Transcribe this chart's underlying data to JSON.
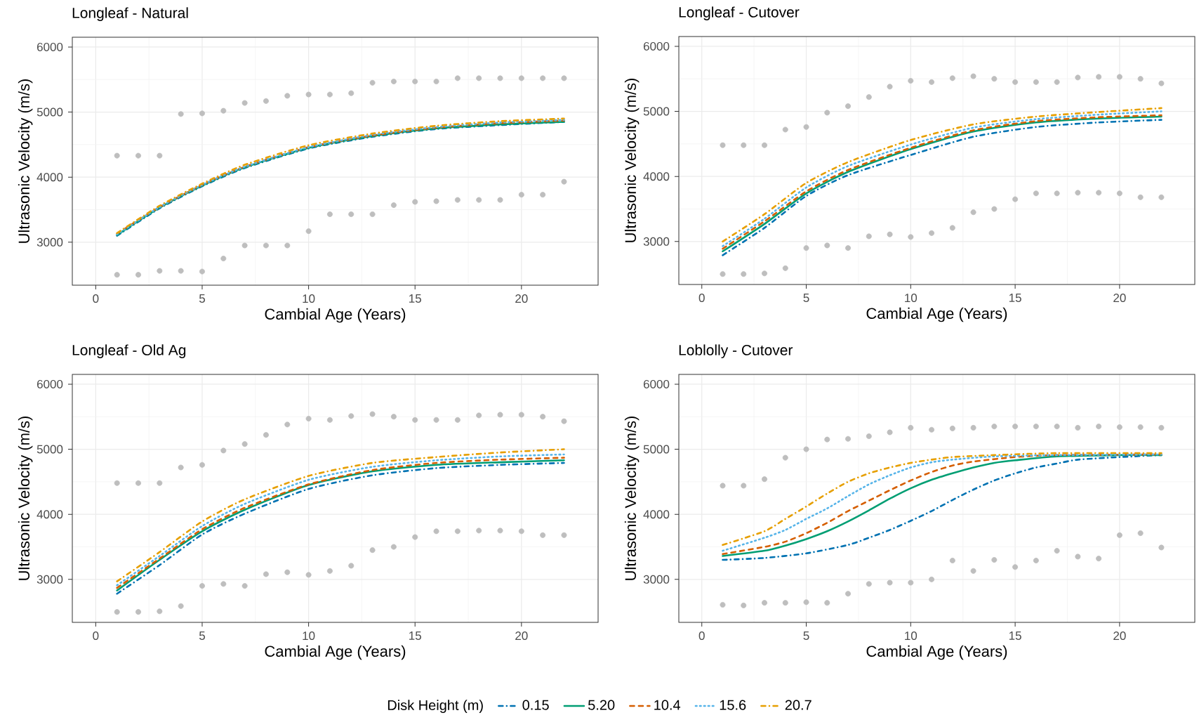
{
  "chart_data": [
    {
      "type": "line",
      "title": "Longleaf - Natural",
      "xlabel": "Cambial Age (Years)",
      "ylabel": "Ultrasonic Velocity (m/s)",
      "xlim": [
        -1.1,
        23.6
      ],
      "ylim": [
        2340,
        6150
      ],
      "xticks": [
        0,
        5,
        10,
        15,
        20
      ],
      "yticks": [
        3000,
        4000,
        5000,
        6000
      ],
      "grid": true,
      "x": [
        1,
        3,
        5,
        7,
        10,
        13,
        16,
        19,
        22
      ],
      "series": [
        {
          "type": "scatter",
          "color": "#bebebe",
          "x": [
            1,
            2,
            3,
            4,
            5,
            6,
            7,
            8,
            9,
            10,
            11,
            12,
            13,
            14,
            15,
            16,
            17,
            18,
            19,
            20,
            21,
            22,
            1,
            2,
            3,
            4,
            5,
            6,
            7,
            8,
            9,
            10,
            11,
            12,
            13,
            14,
            15,
            16,
            17,
            18,
            19,
            20,
            21,
            22
          ],
          "values": [
            4330,
            4330,
            4330,
            4970,
            4980,
            5020,
            5140,
            5170,
            5250,
            5270,
            5270,
            5290,
            5450,
            5470,
            5470,
            5470,
            5520,
            5520,
            5520,
            5520,
            5520,
            5520,
            2500,
            2500,
            2560,
            2560,
            2550,
            2750,
            2950,
            2950,
            2950,
            3170,
            3430,
            3430,
            3430,
            3570,
            3620,
            3630,
            3650,
            3650,
            3650,
            3730,
            3730,
            3930
          ]
        },
        {
          "color": "#0072b2",
          "line_style": "dashdot",
          "values": [
            3100,
            3520,
            3860,
            4140,
            4440,
            4620,
            4740,
            4800,
            4850
          ]
        },
        {
          "color": "#009e73",
          "line_style": "solid",
          "values": [
            3110,
            3530,
            3870,
            4150,
            4450,
            4630,
            4750,
            4810,
            4850
          ]
        },
        {
          "color": "#d55e00",
          "line_style": "dashed",
          "values": [
            3130,
            3540,
            3880,
            4160,
            4460,
            4640,
            4760,
            4830,
            4870
          ]
        },
        {
          "color": "#56b4e9",
          "line_style": "dotted",
          "values": [
            3120,
            3540,
            3880,
            4160,
            4460,
            4650,
            4770,
            4840,
            4880
          ]
        },
        {
          "color": "#e69f00",
          "line_style": "dashdot",
          "values": [
            3140,
            3560,
            3900,
            4190,
            4490,
            4670,
            4790,
            4860,
            4900
          ]
        }
      ]
    },
    {
      "type": "line",
      "title": "Longleaf - Cutover",
      "xlabel": "Cambial Age (Years)",
      "ylabel": "Ultrasonic Velocity (m/s)",
      "xlim": [
        -1.1,
        23.6
      ],
      "ylim": [
        2340,
        6150
      ],
      "xticks": [
        0,
        5,
        10,
        15,
        20
      ],
      "yticks": [
        3000,
        4000,
        5000,
        6000
      ],
      "grid": true,
      "x": [
        1,
        3,
        5,
        7,
        10,
        13,
        16,
        19,
        22
      ],
      "series": [
        {
          "type": "scatter",
          "color": "#bebebe",
          "x": [
            1,
            2,
            3,
            4,
            5,
            6,
            7,
            8,
            9,
            10,
            11,
            12,
            13,
            14,
            15,
            16,
            17,
            18,
            19,
            20,
            21,
            22,
            1,
            2,
            3,
            4,
            5,
            6,
            7,
            8,
            9,
            10,
            11,
            12,
            13,
            14,
            15,
            16,
            17,
            18,
            19,
            20,
            21,
            22
          ],
          "values": [
            4480,
            4480,
            4480,
            4720,
            4760,
            4980,
            5080,
            5220,
            5380,
            5470,
            5450,
            5510,
            5540,
            5500,
            5450,
            5450,
            5450,
            5520,
            5530,
            5530,
            5500,
            5430,
            2500,
            2500,
            2510,
            2590,
            2900,
            2940,
            2900,
            3080,
            3110,
            3070,
            3130,
            3210,
            3450,
            3500,
            3650,
            3740,
            3740,
            3750,
            3750,
            3740,
            3680,
            3680
          ]
        },
        {
          "color": "#0072b2",
          "line_style": "dashdot",
          "values": [
            2790,
            3210,
            3700,
            4020,
            4330,
            4610,
            4760,
            4830,
            4870
          ]
        },
        {
          "color": "#009e73",
          "line_style": "solid",
          "values": [
            2850,
            3270,
            3740,
            4070,
            4420,
            4690,
            4830,
            4890,
            4920
          ]
        },
        {
          "color": "#d55e00",
          "line_style": "dashed",
          "values": [
            2890,
            3310,
            3770,
            4100,
            4440,
            4710,
            4850,
            4910,
            4940
          ]
        },
        {
          "color": "#56b4e9",
          "line_style": "dotted",
          "values": [
            2930,
            3350,
            3830,
            4160,
            4490,
            4750,
            4880,
            4950,
            5000
          ]
        },
        {
          "color": "#e69f00",
          "line_style": "dashdot",
          "values": [
            3000,
            3420,
            3900,
            4220,
            4560,
            4800,
            4920,
            4990,
            5050
          ]
        }
      ]
    },
    {
      "type": "line",
      "title": "Longleaf - Old Ag",
      "xlabel": "Cambial Age (Years)",
      "ylabel": "Ultrasonic Velocity (m/s)",
      "xlim": [
        -1.1,
        23.6
      ],
      "ylim": [
        2340,
        6150
      ],
      "xticks": [
        0,
        5,
        10,
        15,
        20
      ],
      "yticks": [
        3000,
        4000,
        5000,
        6000
      ],
      "grid": true,
      "x": [
        1,
        3,
        5,
        7,
        10,
        13,
        16,
        19,
        22
      ],
      "series": [
        {
          "type": "scatter",
          "color": "#bebebe",
          "x": [
            1,
            2,
            3,
            4,
            5,
            6,
            7,
            8,
            9,
            10,
            11,
            12,
            13,
            14,
            15,
            16,
            17,
            18,
            19,
            20,
            21,
            22,
            1,
            2,
            3,
            4,
            5,
            6,
            7,
            8,
            9,
            10,
            11,
            12,
            13,
            14,
            15,
            16,
            17,
            18,
            19,
            20,
            21,
            22
          ],
          "values": [
            4480,
            4480,
            4480,
            4720,
            4760,
            4980,
            5080,
            5220,
            5380,
            5470,
            5450,
            5510,
            5540,
            5500,
            5450,
            5450,
            5450,
            5520,
            5530,
            5530,
            5500,
            5430,
            2500,
            2500,
            2510,
            2590,
            2900,
            2930,
            2900,
            3080,
            3110,
            3070,
            3130,
            3210,
            3450,
            3500,
            3650,
            3740,
            3740,
            3750,
            3750,
            3740,
            3680,
            3680
          ]
        },
        {
          "color": "#0072b2",
          "line_style": "dashdot",
          "values": [
            2780,
            3220,
            3690,
            4010,
            4390,
            4600,
            4710,
            4760,
            4790
          ]
        },
        {
          "color": "#009e73",
          "line_style": "solid",
          "values": [
            2830,
            3300,
            3740,
            4070,
            4450,
            4660,
            4760,
            4800,
            4830
          ]
        },
        {
          "color": "#d55e00",
          "line_style": "dashed",
          "values": [
            2870,
            3320,
            3770,
            4100,
            4460,
            4680,
            4790,
            4840,
            4870
          ]
        },
        {
          "color": "#56b4e9",
          "line_style": "dotted",
          "values": [
            2910,
            3360,
            3820,
            4160,
            4530,
            4730,
            4830,
            4890,
            4920
          ]
        },
        {
          "color": "#e69f00",
          "line_style": "dashdot",
          "values": [
            2970,
            3420,
            3890,
            4230,
            4590,
            4790,
            4880,
            4950,
            5000
          ]
        }
      ]
    },
    {
      "type": "line",
      "title": "Loblolly - Cutover",
      "xlabel": "Cambial Age (Years)",
      "ylabel": "Ultrasonic Velocity (m/s)",
      "xlim": [
        -1.1,
        23.6
      ],
      "ylim": [
        2340,
        6150
      ],
      "xticks": [
        0,
        5,
        10,
        15,
        20
      ],
      "yticks": [
        3000,
        4000,
        5000,
        6000
      ],
      "grid": true,
      "legend": "bottom",
      "legend_title": "Disk Height (m)",
      "series": [
        {
          "type": "scatter",
          "color": "#bebebe",
          "x": [
            1,
            2,
            3,
            4,
            5,
            6,
            7,
            8,
            9,
            10,
            11,
            12,
            13,
            14,
            15,
            16,
            17,
            18,
            19,
            20,
            21,
            22,
            1,
            2,
            3,
            4,
            5,
            6,
            7,
            8,
            9,
            10,
            11,
            12,
            13,
            14,
            15,
            16,
            17,
            18,
            19,
            20,
            21,
            22
          ],
          "values": [
            4440,
            4440,
            4540,
            4870,
            5000,
            5150,
            5160,
            5200,
            5260,
            5330,
            5300,
            5320,
            5330,
            5350,
            5350,
            5350,
            5350,
            5330,
            5350,
            5340,
            5340,
            5330,
            2610,
            2600,
            2640,
            2640,
            2650,
            2640,
            2780,
            2930,
            2950,
            2950,
            3000,
            3290,
            3130,
            3300,
            3190,
            3290,
            3440,
            3350,
            3320,
            3680,
            3710,
            3490
          ]
        },
        {
          "name": "0.15",
          "color": "#0072b2",
          "line_style": "dashdot",
          "x": [
            1,
            3,
            5,
            7,
            8,
            9,
            10,
            11,
            12,
            13,
            14,
            15,
            16,
            17,
            18,
            20,
            22
          ],
          "values": [
            3300,
            3330,
            3400,
            3530,
            3640,
            3760,
            3900,
            4050,
            4220,
            4380,
            4520,
            4630,
            4720,
            4780,
            4840,
            4880,
            4910
          ]
        },
        {
          "name": "5.20",
          "color": "#009e73",
          "line_style": "solid",
          "x": [
            1,
            3,
            4,
            5,
            6,
            7,
            8,
            9,
            10,
            11,
            12,
            13,
            14,
            15,
            17,
            20,
            22
          ],
          "values": [
            3360,
            3440,
            3520,
            3620,
            3740,
            3890,
            4060,
            4240,
            4400,
            4530,
            4630,
            4720,
            4790,
            4830,
            4890,
            4910,
            4910
          ]
        },
        {
          "name": "10.4",
          "color": "#d55e00",
          "line_style": "dashed",
          "x": [
            1,
            3,
            4,
            5,
            6,
            7,
            8,
            9,
            10,
            11,
            12,
            13,
            15,
            17,
            22
          ],
          "values": [
            3390,
            3500,
            3580,
            3710,
            3870,
            4050,
            4210,
            4370,
            4520,
            4650,
            4750,
            4810,
            4880,
            4910,
            4920
          ]
        },
        {
          "name": "15.6",
          "color": "#56b4e9",
          "line_style": "dotted",
          "x": [
            1,
            3,
            4,
            5,
            6,
            7,
            8,
            9,
            10,
            11,
            12,
            14,
            17,
            22
          ],
          "values": [
            3440,
            3640,
            3760,
            3930,
            4090,
            4280,
            4460,
            4600,
            4720,
            4800,
            4840,
            4890,
            4910,
            4920
          ]
        },
        {
          "name": "20.7",
          "color": "#e69f00",
          "line_style": "dashdot",
          "x": [
            1,
            3,
            4,
            5,
            6,
            7,
            8,
            9,
            10,
            11,
            12,
            14,
            17,
            22
          ],
          "values": [
            3530,
            3740,
            3930,
            4120,
            4320,
            4500,
            4630,
            4720,
            4790,
            4840,
            4880,
            4910,
            4940,
            4940
          ]
        }
      ]
    }
  ]
}
